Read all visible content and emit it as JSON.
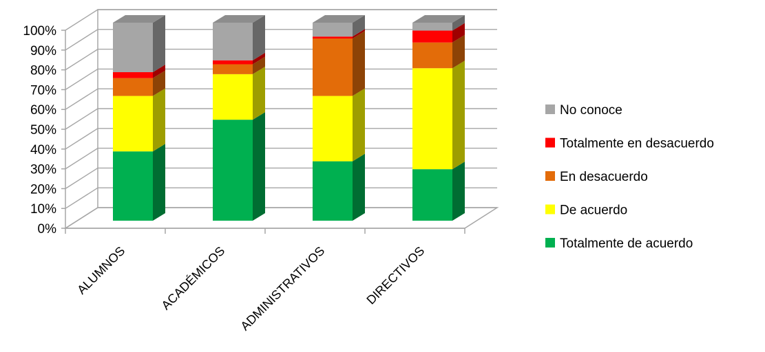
{
  "chart_data": {
    "type": "bar",
    "stacked": true,
    "percent_stacked": true,
    "three_d": true,
    "categories": [
      "ALUMNOS",
      "ACADÉMICOS",
      "ADMINISTRATIVOS",
      "DIRECTIVOS"
    ],
    "series": [
      {
        "name": "Totalmente de acuerdo",
        "values": [
          35,
          51,
          30,
          26
        ],
        "color": "#00b050"
      },
      {
        "name": "De acuerdo",
        "values": [
          28,
          23,
          33,
          51
        ],
        "color": "#ffff00"
      },
      {
        "name": "En desacuerdo",
        "values": [
          9,
          5,
          29,
          13
        ],
        "color": "#e36c09"
      },
      {
        "name": "Totalmente en desacuerdo",
        "values": [
          3,
          2,
          1,
          6
        ],
        "color": "#ff0000"
      },
      {
        "name": "No conoce",
        "values": [
          25,
          19,
          7,
          4
        ],
        "color": "#a6a6a6"
      }
    ],
    "y_ticks": [
      "0%",
      "10%",
      "20%",
      "30%",
      "40%",
      "50%",
      "60%",
      "70%",
      "80%",
      "90%",
      "100%"
    ],
    "ylim": [
      0,
      100
    ],
    "grid": true,
    "legend_position": "right",
    "legend_order": [
      "No conoce",
      "Totalmente en desacuerdo",
      "En desacuerdo",
      "De acuerdo",
      "Totalmente de acuerdo"
    ]
  }
}
